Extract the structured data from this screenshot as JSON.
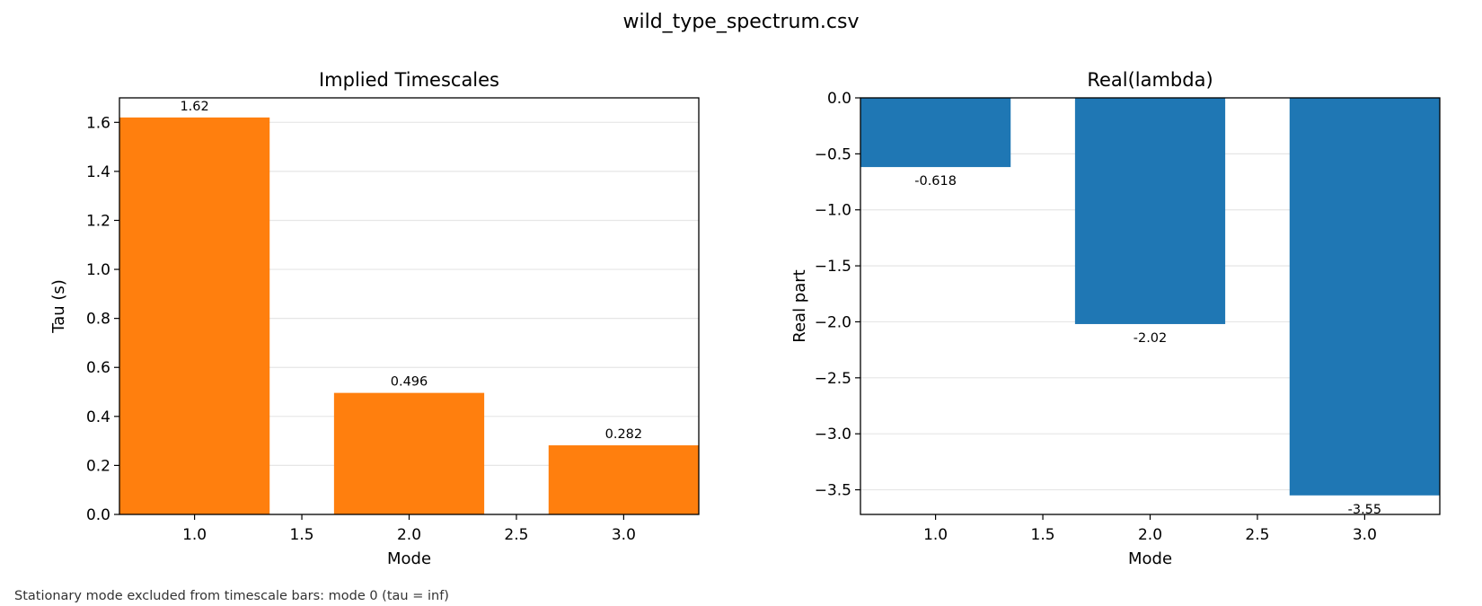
{
  "figure": {
    "title": "wild_type_spectrum.csv",
    "footnote": "Stationary mode excluded from timescale bars: mode 0 (tau = inf)"
  },
  "chart_data": [
    {
      "type": "bar",
      "title": "Implied Timescales",
      "xlabel": "Mode",
      "ylabel": "Tau (s)",
      "x": [
        1,
        2,
        3
      ],
      "values": [
        1.62,
        0.496,
        0.282
      ],
      "data_labels": [
        "1.62",
        "0.496",
        "0.282"
      ],
      "xlim": [
        0.65,
        3.35
      ],
      "ylim": [
        0,
        1.7
      ],
      "xticks": [
        1.0,
        1.5,
        2.0,
        2.5,
        3.0
      ],
      "xtick_labels": [
        "1.0",
        "1.5",
        "2.0",
        "2.5",
        "3.0"
      ],
      "yticks": [
        0.0,
        0.2,
        0.4,
        0.6,
        0.8,
        1.0,
        1.2,
        1.4,
        1.6
      ],
      "ytick_labels": [
        "0.0",
        "0.2",
        "0.4",
        "0.6",
        "0.8",
        "1.0",
        "1.2",
        "1.4",
        "1.6"
      ],
      "bar_width": 0.7,
      "color": "#ff7f0e",
      "grid": "y",
      "label_position": "above"
    },
    {
      "type": "bar",
      "title": "Real(lambda)",
      "xlabel": "Mode",
      "ylabel": "Real part",
      "x": [
        1,
        2,
        3
      ],
      "values": [
        -0.618,
        -2.02,
        -3.55
      ],
      "data_labels": [
        "-0.618",
        "-2.02",
        "-3.55"
      ],
      "xlim": [
        0.65,
        3.35
      ],
      "ylim": [
        -3.72,
        0.0
      ],
      "xticks": [
        1.0,
        1.5,
        2.0,
        2.5,
        3.0
      ],
      "xtick_labels": [
        "1.0",
        "1.5",
        "2.0",
        "2.5",
        "3.0"
      ],
      "yticks": [
        0.0,
        -0.5,
        -1.0,
        -1.5,
        -2.0,
        -2.5,
        -3.0,
        -3.5
      ],
      "ytick_labels": [
        "0.0",
        "−0.5",
        "−1.0",
        "−1.5",
        "−2.0",
        "−2.5",
        "−3.0",
        "−3.5"
      ],
      "bar_width": 0.7,
      "color": "#1f77b4",
      "grid": "y",
      "label_position": "below"
    }
  ]
}
